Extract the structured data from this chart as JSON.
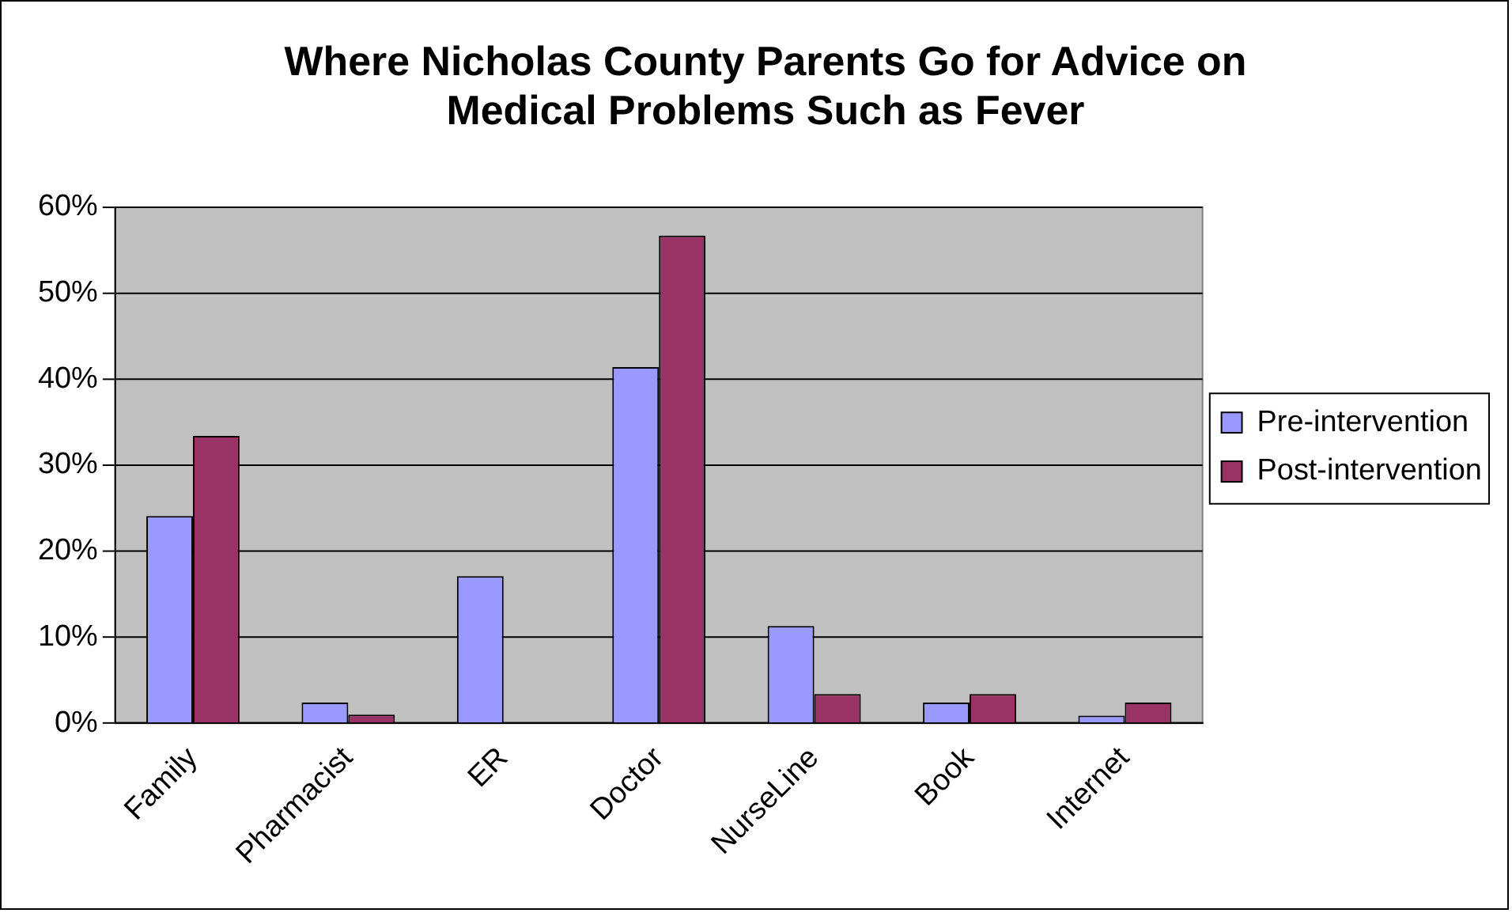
{
  "chart_data": {
    "type": "bar",
    "title": "Where Nicholas County Parents Go for Advice on Medical Problems Such as Fever",
    "categories": [
      "Family",
      "Pharmacist",
      "ER",
      "Doctor",
      "NurseLine",
      "Book",
      "Internet"
    ],
    "series": [
      {
        "name": "Pre-intervention",
        "color": "#9999ff",
        "values": [
          24.1,
          2.4,
          17.1,
          41.4,
          11.3,
          2.4,
          0.9
        ]
      },
      {
        "name": "Post-intervention",
        "color": "#993366",
        "values": [
          33.4,
          1.0,
          0,
          56.7,
          3.4,
          3.4,
          2.4
        ]
      }
    ],
    "ylim": [
      0,
      60
    ],
    "yticks": [
      {
        "value": 0,
        "label": "0%"
      },
      {
        "value": 10,
        "label": "10%"
      },
      {
        "value": 20,
        "label": "20%"
      },
      {
        "value": 30,
        "label": "30%"
      },
      {
        "value": 40,
        "label": "40%"
      },
      {
        "value": 50,
        "label": "50%"
      },
      {
        "value": 60,
        "label": "60%"
      }
    ],
    "grid": "y",
    "legend": "right"
  }
}
